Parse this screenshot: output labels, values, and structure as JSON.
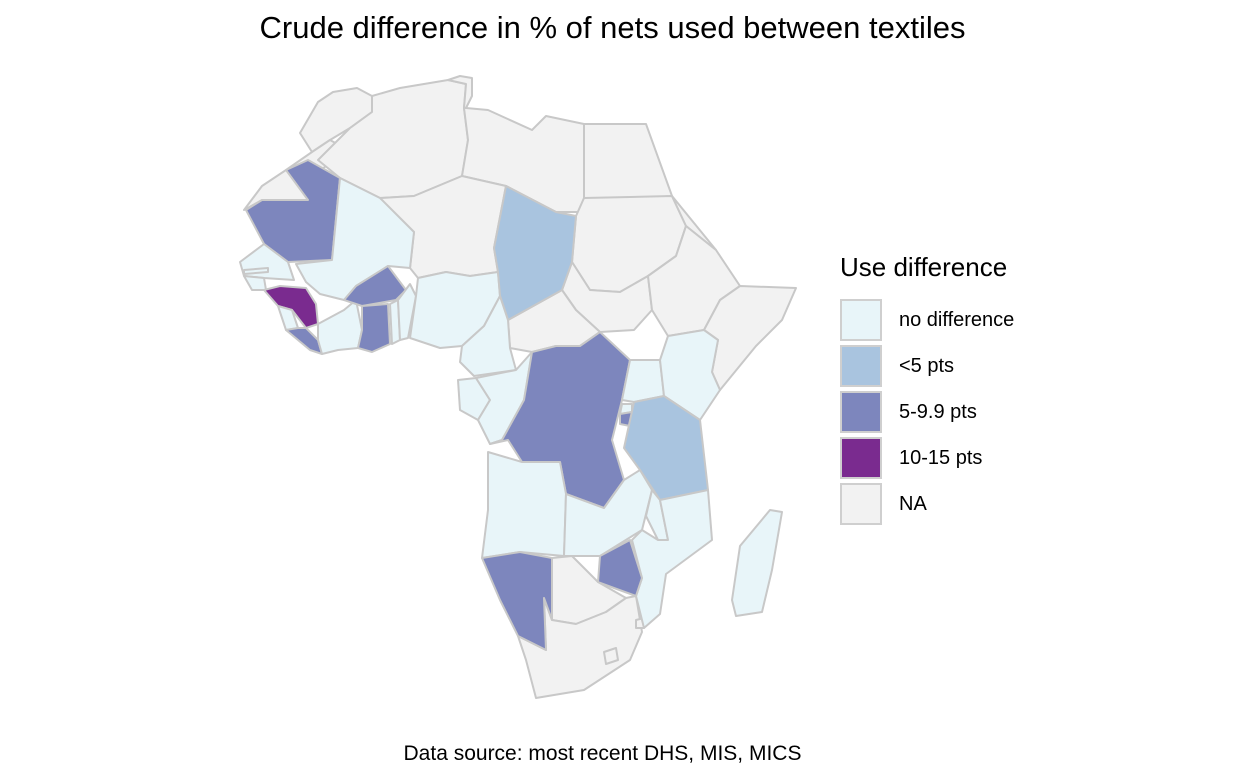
{
  "title": "Crude difference in % of nets used between textiles",
  "source": "Data source: most recent DHS, MIS, MICS",
  "legend": {
    "title": "Use difference",
    "items": [
      {
        "key": "none",
        "label": "no difference",
        "color": "#e8f5f9"
      },
      {
        "key": "lt5",
        "label": "<5 pts",
        "color": "#a9c4df"
      },
      {
        "key": "mid",
        "label": "5-9.9 pts",
        "color": "#7d86bd"
      },
      {
        "key": "high",
        "label": "10-15 pts",
        "color": "#7a2b8f"
      },
      {
        "key": "na",
        "label": "NA",
        "color": "#f2f2f2"
      }
    ]
  },
  "countries": [
    {
      "name": "Morocco",
      "category": "na"
    },
    {
      "name": "Western Sahara",
      "category": "na"
    },
    {
      "name": "Algeria",
      "category": "na"
    },
    {
      "name": "Tunisia",
      "category": "na"
    },
    {
      "name": "Libya",
      "category": "na"
    },
    {
      "name": "Egypt",
      "category": "na"
    },
    {
      "name": "Sudan",
      "category": "na"
    },
    {
      "name": "South Sudan",
      "category": "na"
    },
    {
      "name": "Eritrea",
      "category": "na"
    },
    {
      "name": "Ethiopia",
      "category": "na"
    },
    {
      "name": "Somalia",
      "category": "na"
    },
    {
      "name": "Niger",
      "category": "na"
    },
    {
      "name": "Central African Republic",
      "category": "na"
    },
    {
      "name": "Botswana",
      "category": "na"
    },
    {
      "name": "South Africa",
      "category": "na"
    },
    {
      "name": "Mauritania",
      "category": "mid"
    },
    {
      "name": "Mali",
      "category": "none"
    },
    {
      "name": "Senegal",
      "category": "none"
    },
    {
      "name": "Gambia",
      "category": "none"
    },
    {
      "name": "Guinea-Bissau",
      "category": "none"
    },
    {
      "name": "Guinea",
      "category": "high"
    },
    {
      "name": "Sierra Leone",
      "category": "none"
    },
    {
      "name": "Liberia",
      "category": "mid"
    },
    {
      "name": "Cote d'Ivoire",
      "category": "none"
    },
    {
      "name": "Burkina Faso",
      "category": "mid"
    },
    {
      "name": "Ghana",
      "category": "mid"
    },
    {
      "name": "Togo",
      "category": "none"
    },
    {
      "name": "Benin",
      "category": "none"
    },
    {
      "name": "Nigeria",
      "category": "none"
    },
    {
      "name": "Chad",
      "category": "lt5"
    },
    {
      "name": "Cameroon",
      "category": "none"
    },
    {
      "name": "Gabon",
      "category": "none"
    },
    {
      "name": "Congo",
      "category": "none"
    },
    {
      "name": "DR Congo",
      "category": "mid"
    },
    {
      "name": "Uganda",
      "category": "none"
    },
    {
      "name": "Kenya",
      "category": "none"
    },
    {
      "name": "Rwanda",
      "category": "none"
    },
    {
      "name": "Burundi",
      "category": "mid"
    },
    {
      "name": "Tanzania",
      "category": "lt5"
    },
    {
      "name": "Angola",
      "category": "none"
    },
    {
      "name": "Zambia",
      "category": "none"
    },
    {
      "name": "Malawi",
      "category": "none"
    },
    {
      "name": "Mozambique",
      "category": "none"
    },
    {
      "name": "Zimbabwe",
      "category": "mid"
    },
    {
      "name": "Namibia",
      "category": "mid"
    },
    {
      "name": "Madagascar",
      "category": "none"
    },
    {
      "name": "Lesotho",
      "category": "na"
    },
    {
      "name": "Eswatini",
      "category": "na"
    }
  ]
}
